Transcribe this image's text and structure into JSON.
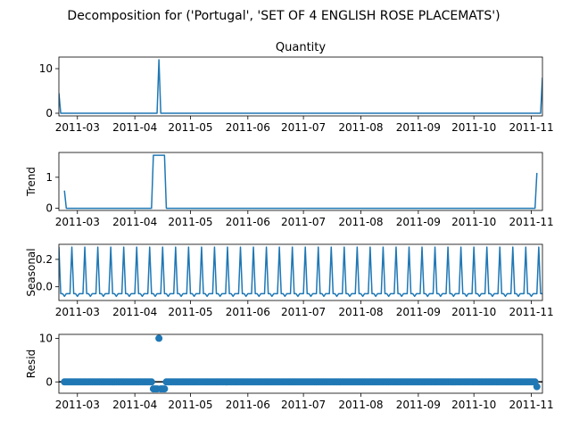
{
  "figure": {
    "title": "Decomposition for ('Portugal', 'SET OF 4 ENGLISH ROSE PLACEMATS')"
  },
  "colors": {
    "series": "#1f77b4",
    "axes": "#000000",
    "background": "#ffffff"
  },
  "chart_data": [
    {
      "type": "line",
      "title": "Quantity",
      "ylabel": "",
      "xlim": [
        "2011-02-19",
        "2011-11-07"
      ],
      "ylim": [
        -0.6,
        12.6
      ],
      "yticks": [
        0,
        10
      ],
      "xticks": [
        "2011-03",
        "2011-04",
        "2011-05",
        "2011-06",
        "2011-07",
        "2011-08",
        "2011-09",
        "2011-10",
        "2011-11"
      ],
      "points": [
        [
          "2011-02-19",
          4.5
        ],
        [
          "2011-02-20",
          0
        ],
        [
          "2011-04-13",
          0
        ],
        [
          "2011-04-14",
          12
        ],
        [
          "2011-04-15",
          0
        ],
        [
          "2011-11-06",
          0
        ],
        [
          "2011-11-07",
          8
        ]
      ]
    },
    {
      "type": "line",
      "title": "",
      "ylabel": "Trend",
      "xlim": [
        "2011-02-19",
        "2011-11-07"
      ],
      "ylim": [
        -0.07,
        1.8
      ],
      "yticks": [
        0,
        1
      ],
      "xticks": [
        "2011-03",
        "2011-04",
        "2011-05",
        "2011-06",
        "2011-07",
        "2011-08",
        "2011-09",
        "2011-10",
        "2011-11"
      ],
      "points": [
        [
          "2011-02-22",
          0.57
        ],
        [
          "2011-02-23",
          0
        ],
        [
          "2011-04-10",
          0
        ],
        [
          "2011-04-11",
          1.71
        ],
        [
          "2011-04-17",
          1.71
        ],
        [
          "2011-04-18",
          0
        ],
        [
          "2011-11-03",
          0
        ],
        [
          "2011-11-04",
          1.14
        ]
      ]
    },
    {
      "type": "line",
      "title": "",
      "ylabel": "Seasonal",
      "xlim": [
        "2011-02-19",
        "2011-11-07"
      ],
      "ylim": [
        -0.1,
        0.31
      ],
      "yticks": [
        0.0,
        0.2
      ],
      "yticklabels": [
        "0.0",
        "0.2"
      ],
      "xticks": [
        "2011-03",
        "2011-04",
        "2011-05",
        "2011-06",
        "2011-07",
        "2011-08",
        "2011-09",
        "2011-10",
        "2011-11"
      ],
      "period_days": 7,
      "first_peak": "2011-02-19",
      "pattern": [
        0.29,
        -0.05,
        -0.05,
        -0.07,
        -0.05,
        -0.05,
        -0.05
      ]
    },
    {
      "type": "scatter",
      "title": "",
      "ylabel": "Resid",
      "xlim": [
        "2011-02-19",
        "2011-11-07"
      ],
      "ylim": [
        -2.6,
        10.9
      ],
      "yticks": [
        0,
        10
      ],
      "xticks": [
        "2011-03",
        "2011-04",
        "2011-05",
        "2011-06",
        "2011-07",
        "2011-08",
        "2011-09",
        "2011-10",
        "2011-11"
      ],
      "range": [
        "2011-02-22",
        "2011-11-04"
      ],
      "baseline": 0,
      "outliers": [
        [
          "2011-04-11",
          -1.6
        ],
        [
          "2011-04-12",
          -1.6
        ],
        [
          "2011-04-13",
          -1.6
        ],
        [
          "2011-04-14",
          10.0
        ],
        [
          "2011-04-15",
          -1.6
        ],
        [
          "2011-04-16",
          -1.6
        ],
        [
          "2011-04-17",
          -1.6
        ],
        [
          "2011-11-04",
          -1.1
        ]
      ],
      "zero_line": true
    }
  ]
}
